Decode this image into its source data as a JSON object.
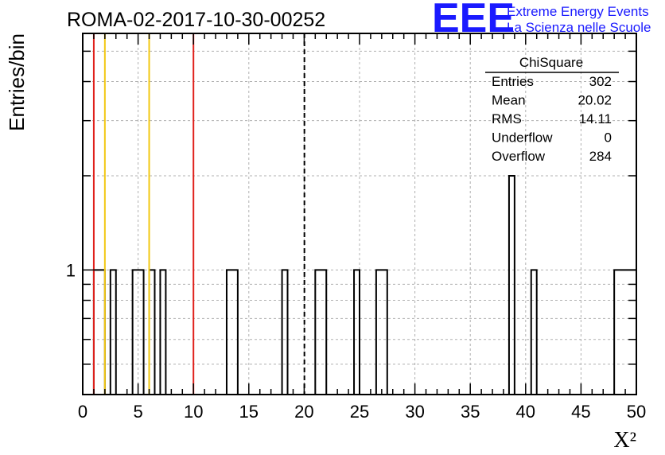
{
  "colors": {
    "red_line": "#e0201b",
    "yellow_line": "#f2c813",
    "grid": "#b0b0b0",
    "logo_blue": "#1a1aff"
  },
  "logo": {
    "mark": "EEE",
    "line1": "Extreme Energy Events",
    "line2": "La Scienza nelle Scuole"
  },
  "chart_data": {
    "type": "bar",
    "title": "ROMA-02-2017-10-30-00252",
    "xlabel": "X²",
    "ylabel": "Entries/bin",
    "xlim": [
      0,
      50
    ],
    "ylog": true,
    "ylim": [
      0.4,
      5.7
    ],
    "x_ticks": [
      0,
      5,
      10,
      15,
      20,
      25,
      30,
      35,
      40,
      45,
      50
    ],
    "y_tick_labels": [
      {
        "value": 1,
        "label": "1"
      }
    ],
    "grid": true,
    "bin_width": 0.5,
    "bins": [
      {
        "x": 1.0,
        "value": 1
      },
      {
        "x": 1.5,
        "value": 1
      },
      {
        "x": 2.5,
        "value": 1
      },
      {
        "x": 4.5,
        "value": 1
      },
      {
        "x": 5.0,
        "value": 1
      },
      {
        "x": 6.0,
        "value": 1
      },
      {
        "x": 7.0,
        "value": 1
      },
      {
        "x": 13.0,
        "value": 1
      },
      {
        "x": 13.5,
        "value": 1
      },
      {
        "x": 18.0,
        "value": 1
      },
      {
        "x": 21.0,
        "value": 1
      },
      {
        "x": 21.5,
        "value": 1
      },
      {
        "x": 24.5,
        "value": 1
      },
      {
        "x": 26.5,
        "value": 1
      },
      {
        "x": 27.0,
        "value": 1
      },
      {
        "x": 38.5,
        "value": 2
      },
      {
        "x": 40.5,
        "value": 1
      },
      {
        "x": 48.0,
        "value": 1
      },
      {
        "x": 48.5,
        "value": 1
      },
      {
        "x": 49.0,
        "value": 1
      },
      {
        "x": 49.5,
        "value": 1
      }
    ],
    "vertical_lines": [
      {
        "x": 1.0,
        "color": "red"
      },
      {
        "x": 2.0,
        "color": "yellow"
      },
      {
        "x": 6.0,
        "color": "yellow"
      },
      {
        "x": 10.0,
        "color": "red"
      },
      {
        "x": 20.02,
        "color": "black-dashed"
      }
    ],
    "stats": {
      "name": "ChiSquare",
      "rows": [
        {
          "label": "Entries",
          "value": "302"
        },
        {
          "label": "Mean",
          "value": "20.02"
        },
        {
          "label": "RMS",
          "value": "14.11"
        },
        {
          "label": "Underflow",
          "value": "0"
        },
        {
          "label": "Overflow",
          "value": "284"
        }
      ]
    }
  }
}
